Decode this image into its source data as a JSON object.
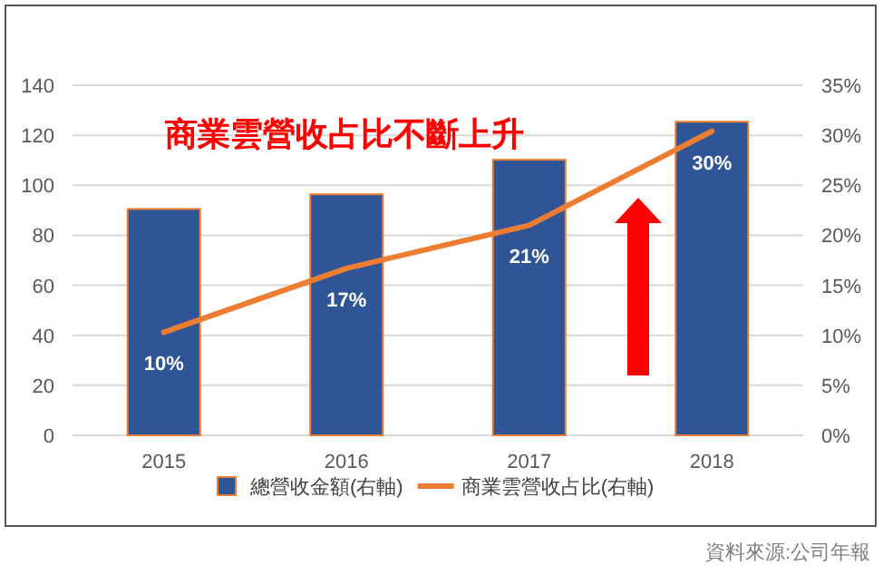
{
  "chart_data": {
    "type": "bar",
    "title": "商業雲營收占比不斷上升",
    "categories": [
      "2015",
      "2016",
      "2017",
      "2018"
    ],
    "series": [
      {
        "name": "總營收金額(右軸)",
        "color": "#2f5597",
        "values": [
          90.5,
          96.4,
          110.2,
          125.4
        ]
      },
      {
        "name": "商業雲營收占比(右軸)",
        "type": "line",
        "axis": "y2",
        "color": "#ed7d31",
        "values": [
          10.3,
          16.7,
          21.0,
          30.4
        ],
        "value_labels": [
          "10%",
          "17%",
          "21%",
          "30%"
        ]
      }
    ],
    "ylim": [
      0,
      140
    ],
    "yticks": [
      0,
      20,
      40,
      60,
      80,
      100,
      120,
      140
    ],
    "y2lim": [
      0,
      35
    ],
    "y2ticks": [
      {
        "value": 0,
        "label": "0%"
      },
      {
        "value": 5,
        "label": "5%"
      },
      {
        "value": 10,
        "label": "10%"
      },
      {
        "value": 15,
        "label": "15%"
      },
      {
        "value": 20,
        "label": "20%"
      },
      {
        "value": 25,
        "label": "25%"
      },
      {
        "value": 30,
        "label": "30%"
      },
      {
        "value": 35,
        "label": "35%"
      }
    ],
    "grid": "y",
    "legend": "bottom",
    "annotations": [
      "資料來源:公司年報"
    ]
  }
}
